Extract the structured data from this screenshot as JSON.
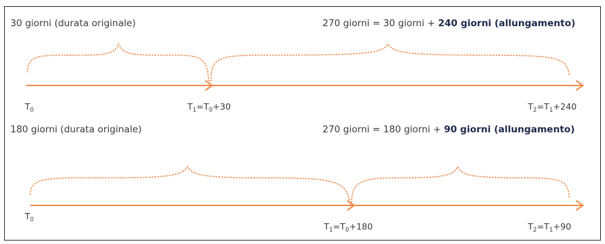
{
  "colors": {
    "arrow": "#f08a4b",
    "text": "#3a3a3a",
    "bold": "#1e2a4a",
    "border": "#2b2b2b"
  },
  "rows": [
    {
      "left_label": "30 giorni (durata originale)",
      "right_label_prefix": "270 giorni = 30 giorni + ",
      "right_label_bold": "240 giorni (allungamento)",
      "t0": {
        "main": "T",
        "sub": "0"
      },
      "t1": {
        "main1": "T",
        "sub1": "1",
        "eq": "=T",
        "sub2": "0",
        "rest": "+30"
      },
      "t2": {
        "main1": "T",
        "sub1": "2",
        "eq": "=T",
        "sub2": "1",
        "rest": "+240"
      }
    },
    {
      "left_label": "180 giorni (durata originale)",
      "right_label_prefix": "270 giorni = 180 giorni + ",
      "right_label_bold": "90 giorni (allungamento)",
      "t0": {
        "main": "T",
        "sub": "0"
      },
      "t1": {
        "main1": "T",
        "sub1": "1",
        "eq": "=T",
        "sub2": "0",
        "rest": "+180"
      },
      "t2": {
        "main1": "T",
        "sub1": "2",
        "eq": "=T",
        "sub2": "1",
        "rest": "+90"
      }
    }
  ]
}
